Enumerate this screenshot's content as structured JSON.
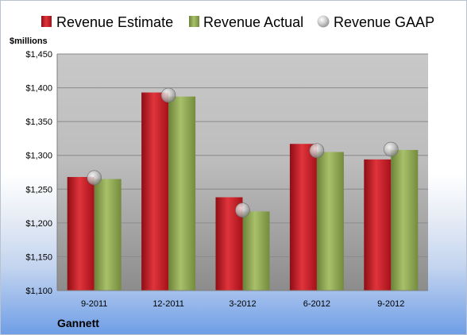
{
  "chart_data": {
    "type": "bar",
    "unit_label": "$millions",
    "company": "Gannett",
    "categories": [
      "9-2011",
      "12-2011",
      "3-2012",
      "6-2012",
      "9-2012"
    ],
    "y_ticks": [
      "$1,100",
      "$1,150",
      "$1,200",
      "$1,250",
      "$1,300",
      "$1,350",
      "$1,400",
      "$1,450"
    ],
    "ylim": [
      1100,
      1450
    ],
    "series": [
      {
        "name": "Revenue Estimate",
        "values": [
          1268,
          1393,
          1238,
          1317,
          1294
        ],
        "color": "#c0141e"
      },
      {
        "name": "Revenue Actual",
        "values": [
          1265,
          1387,
          1217,
          1305,
          1308
        ],
        "color": "#8aa451"
      },
      {
        "name": "Revenue GAAP",
        "values": [
          1267,
          1389,
          1219,
          1307,
          1309
        ],
        "color": "#b4b4b4"
      }
    ],
    "legend_position": "top",
    "grid": true
  }
}
